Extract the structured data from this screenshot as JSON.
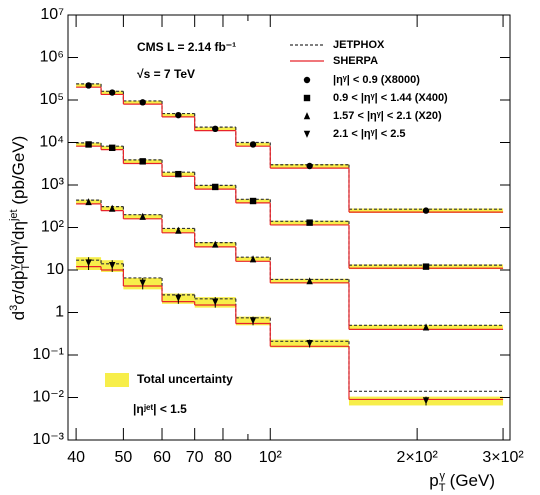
{
  "chart_data": {
    "type": "histogram",
    "log_x": true,
    "log_y": true,
    "xlabel": [
      {
        "text": "p"
      },
      {
        "text": "T",
        "pos": "sub"
      },
      {
        "text": "γ",
        "pos": "sup"
      },
      {
        "text": " (GeV)"
      }
    ],
    "ylabel": [
      {
        "text": "d"
      },
      {
        "text": "3",
        "pos": "sup"
      },
      {
        "text": "σ/dp"
      },
      {
        "text": "T",
        "pos": "sub"
      },
      {
        "text": "γ",
        "pos": "sup"
      },
      {
        "text": "dη"
      },
      {
        "text": "γ",
        "pos": "sup"
      },
      {
        "text": "dη"
      },
      {
        "text": "jet",
        "pos": "sup"
      },
      {
        "text": " (pb/GeV)"
      }
    ],
    "annotations": [
      "CMS   L = 2.14 fb⁻¹",
      "√s = 7 TeV",
      "|ηʲᵉᵗ| < 1.5"
    ],
    "band_label": "Total uncertainty",
    "band_color": "#f7ee4a",
    "xlim": [
      38.5,
      310
    ],
    "ylim": [
      0.001,
      10000000
    ],
    "xticks": [
      40,
      50,
      60,
      70,
      80,
      {
        "value": 100,
        "label": "10²"
      },
      {
        "value": 200,
        "label": "2×10²"
      },
      {
        "value": 300,
        "label": "3×10²"
      }
    ],
    "xminor_ticks": [
      90
    ],
    "yticks": [
      {
        "value": 0.001,
        "label": "10⁻³"
      },
      {
        "value": 0.01,
        "label": "10⁻²"
      },
      {
        "value": 0.1,
        "label": "10⁻¹"
      },
      1,
      10,
      {
        "value": 100,
        "label": "10²"
      },
      {
        "value": 1000,
        "label": "10³"
      },
      {
        "value": 10000,
        "label": "10⁴"
      },
      {
        "value": 100000,
        "label": "10⁵"
      },
      {
        "value": 1000000,
        "label": "10⁶"
      },
      {
        "value": 10000000,
        "label": "10⁷"
      }
    ],
    "bins": [
      40,
      45,
      50,
      60,
      70,
      85,
      100,
      145,
      300
    ],
    "series": [
      {
        "name": "|ηᵞ| < 0.9 (X8000)",
        "marker": "circle",
        "color": "#000000",
        "values": [
          220000,
          150000,
          88000,
          44000,
          21000,
          9000,
          2800,
          250
        ],
        "uncertainty": [
          22000,
          15000,
          8000,
          4000,
          2000,
          900,
          300,
          30
        ]
      },
      {
        "name": "0.9 < |ηᵞ| < 1.44 (X400)",
        "marker": "square",
        "color": "#000000",
        "values": [
          9000,
          7500,
          3600,
          1800,
          900,
          420,
          130,
          12
        ],
        "uncertainty": [
          900,
          750,
          360,
          180,
          90,
          45,
          15,
          1.5
        ]
      },
      {
        "name": "1.57 < |ηᵞ| < 2.1 (X20)",
        "marker": "triangle-up",
        "color": "#000000",
        "values": [
          400,
          280,
          180,
          85,
          40,
          18,
          5.5,
          0.45
        ],
        "uncertainty": [
          50,
          35,
          22,
          10,
          5,
          2.2,
          0.7,
          0.06
        ]
      },
      {
        "name": "2.1 < |ηᵞ| < 2.5",
        "marker": "triangle-down",
        "color": "#000000",
        "values": [
          15,
          13,
          5,
          2.2,
          1.8,
          0.65,
          0.19,
          0.0085
        ],
        "uncertainty": [
          5,
          4,
          1.5,
          0.6,
          0.5,
          0.15,
          0.04,
          0.002
        ]
      }
    ],
    "models": [
      {
        "name": "JETPHOX",
        "color": "#333333",
        "style": "dashed",
        "values": [
          [
            240000,
            160000,
            95000,
            48000,
            23000,
            10000,
            3000,
            270
          ],
          [
            9800,
            8200,
            3900,
            2000,
            980,
            460,
            140,
            13
          ],
          [
            440,
            310,
            200,
            95,
            44,
            20,
            6,
            0.5
          ],
          [
            17,
            14,
            6.5,
            2.6,
            2.1,
            0.75,
            0.21,
            0.014
          ]
        ]
      },
      {
        "name": "SHERPA",
        "color": "#e8242a",
        "style": "solid",
        "values": [
          [
            200000,
            135000,
            80000,
            40000,
            19000,
            8200,
            2500,
            230
          ],
          [
            8200,
            6800,
            3200,
            1600,
            800,
            380,
            115,
            11
          ],
          [
            360,
            250,
            160,
            75,
            35,
            16,
            5,
            0.4
          ],
          [
            12,
            10,
            4.2,
            1.8,
            1.5,
            0.55,
            0.16,
            0.009
          ]
        ]
      }
    ]
  }
}
